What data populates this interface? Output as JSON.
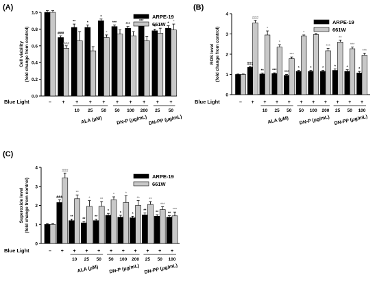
{
  "chart_data": [
    {
      "panel": "(A)",
      "type": "bar",
      "ylabel": [
        "Cell viability",
        "(fold change from control)"
      ],
      "ylim": [
        0,
        1.0
      ],
      "yticks": [
        0.0,
        0.2,
        0.4,
        0.6,
        0.8,
        1.0
      ],
      "ytick_labels": [
        "0.0",
        "0.2",
        "0.4",
        "0.6",
        "0.8",
        "1.0"
      ],
      "series": [
        {
          "name": "ARPE-19",
          "color": "#000000",
          "values": [
            1.0,
            0.7,
            0.82,
            0.82,
            0.9,
            0.83,
            0.81,
            0.85,
            0.78,
            0.81
          ],
          "errors": [
            0.02,
            0.02,
            0.04,
            0.03,
            0.02,
            0.02,
            0.02,
            0.02,
            0.02,
            0.03
          ],
          "marks": [
            "",
            "###",
            "**",
            "*",
            "*",
            "***",
            "***",
            "***",
            "*",
            "*"
          ]
        },
        {
          "name": "661W",
          "color": "#c8c8c8",
          "values": [
            1.0,
            0.57,
            0.66,
            0.54,
            0.7,
            0.74,
            0.72,
            0.66,
            0.75,
            0.79
          ],
          "errors": [
            0.02,
            0.03,
            0.11,
            0.05,
            0.03,
            0.05,
            0.05,
            0.05,
            0.06,
            0.07
          ],
          "marks": [
            "",
            "###",
            "",
            "",
            "*",
            "",
            "",
            "",
            "*",
            "*"
          ]
        }
      ],
      "legend": "top-right",
      "row_label": "Blue Light",
      "blue_light": [
        "–",
        "+",
        "+",
        "+",
        "+",
        "+",
        "+",
        "+",
        "+",
        "+"
      ],
      "doses": [
        "",
        "",
        "10",
        "25",
        "50",
        "50",
        "100",
        "200",
        "25",
        "50"
      ],
      "groups": [
        {
          "label": "ALA (μM)",
          "span": [
            2,
            4
          ]
        },
        {
          "label": "DN-P (μg/mL)",
          "span": [
            5,
            7
          ]
        },
        {
          "label": "DN-PP (μg/mL)",
          "span": [
            8,
            9
          ]
        }
      ]
    },
    {
      "panel": "(B)",
      "type": "bar",
      "ylabel": [
        "ROS level",
        "(fold change from control)"
      ],
      "ylim": [
        0,
        4
      ],
      "yticks": [
        0,
        1,
        2,
        3,
        4
      ],
      "ytick_labels": [
        "0",
        "1",
        "2",
        "3",
        "4"
      ],
      "series": [
        {
          "name": "ARPE-19",
          "color": "#000000",
          "values": [
            1.0,
            1.35,
            1.02,
            1.04,
            0.95,
            1.15,
            1.15,
            1.15,
            1.2,
            1.15,
            1.07
          ],
          "errors": [
            0.02,
            0.05,
            0.05,
            0.04,
            0.05,
            0.05,
            0.05,
            0.05,
            0.07,
            0.08,
            0.08
          ],
          "marks": [
            "",
            "###",
            "**",
            "***",
            "***",
            "*",
            "*",
            "*",
            "*",
            "*",
            "*"
          ]
        },
        {
          "name": "661W",
          "color": "#c8c8c8",
          "values": [
            1.0,
            3.55,
            2.95,
            2.35,
            1.78,
            2.9,
            2.97,
            2.17,
            2.6,
            2.27,
            1.95
          ],
          "errors": [
            0.02,
            0.12,
            0.2,
            0.12,
            0.08,
            0.05,
            0.05,
            0.12,
            0.1,
            0.08,
            0.1
          ],
          "marks": [
            "",
            "###",
            "*",
            "*",
            "***",
            "*",
            "*",
            "***",
            "**",
            "***",
            "***"
          ]
        }
      ],
      "legend": "top-right",
      "row_label": "Blue Light",
      "blue_light": [
        "–",
        "+",
        "+",
        "+",
        "+",
        "+",
        "+",
        "+",
        "+",
        "+",
        "+"
      ],
      "doses": [
        "",
        "",
        "10",
        "25",
        "50",
        "50",
        "100",
        "200",
        "25",
        "50",
        "100"
      ],
      "groups": [
        {
          "label": "ALA (μM)",
          "span": [
            2,
            4
          ]
        },
        {
          "label": "DN-P (μg/mL)",
          "span": [
            5,
            7
          ]
        },
        {
          "label": "DN-PP (μg/mL)",
          "span": [
            8,
            10
          ]
        }
      ]
    },
    {
      "panel": "(C)",
      "type": "bar",
      "ylabel": [
        "Superoxide level",
        "(fold change from control)"
      ],
      "ylim": [
        0,
        4
      ],
      "yticks": [
        0,
        1,
        2,
        3,
        4
      ],
      "ytick_labels": [
        "0",
        "1",
        "2",
        "3",
        "4"
      ],
      "series": [
        {
          "name": "ARPE-19",
          "color": "#000000",
          "values": [
            1.0,
            2.15,
            1.2,
            1.08,
            1.2,
            1.48,
            1.38,
            1.35,
            1.5,
            1.43,
            1.38
          ],
          "errors": [
            0.05,
            0.15,
            0.08,
            0.08,
            0.08,
            0.1,
            0.1,
            0.08,
            0.1,
            0.08,
            0.08
          ],
          "marks": [
            "",
            "###",
            "**",
            "**",
            "**",
            "*",
            "*",
            "*",
            "**",
            "**",
            "**"
          ]
        },
        {
          "name": "661W",
          "color": "#c8c8c8",
          "values": [
            1.0,
            3.45,
            2.35,
            1.95,
            1.95,
            2.3,
            2.15,
            2.0,
            2.05,
            1.78,
            1.45
          ],
          "errors": [
            0.05,
            0.25,
            0.2,
            0.3,
            0.25,
            0.15,
            0.35,
            0.25,
            0.15,
            0.15,
            0.2
          ],
          "marks": [
            "",
            "###",
            "**",
            "*",
            "**",
            "*",
            "*",
            "**",
            "**",
            "***",
            "***"
          ]
        }
      ],
      "legend": "top-right",
      "row_label": "Blue Light",
      "blue_light": [
        "–",
        "+",
        "+",
        "+",
        "+",
        "+",
        "+",
        "+",
        "+",
        "+",
        "+"
      ],
      "doses": [
        "",
        "",
        "10",
        "25",
        "50",
        "50",
        "100",
        "200",
        "25",
        "50",
        "100"
      ],
      "groups": [
        {
          "label": "ALA (μM)",
          "span": [
            2,
            4
          ]
        },
        {
          "label": "DN-P (μg/mL)",
          "span": [
            5,
            7
          ]
        },
        {
          "label": "DN-PP (μg/mL)",
          "span": [
            8,
            10
          ]
        }
      ]
    }
  ]
}
